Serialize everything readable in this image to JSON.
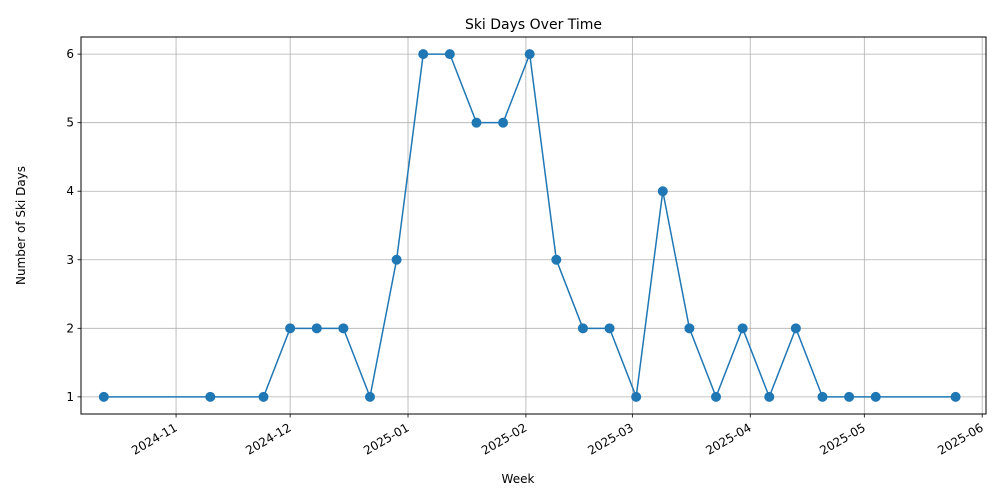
{
  "chart_data": {
    "type": "line",
    "title": "Ski Days Over Time",
    "xlabel": "Week",
    "ylabel": "Number of Ski Days",
    "x_tick_labels": [
      "2024-11",
      "2024-12",
      "2025-01",
      "2025-02",
      "2025-03",
      "2025-04",
      "2025-05",
      "2025-06"
    ],
    "y_tick_labels": [
      "1",
      "2",
      "3",
      "4",
      "5",
      "6"
    ],
    "xlim": [
      "2024-10-07",
      "2025-06-02"
    ],
    "ylim": [
      0.75,
      6.25
    ],
    "grid": true,
    "series": [
      {
        "color": "#1f77b4",
        "marker": "circle",
        "x": [
          "2024-10-13",
          "2024-11-10",
          "2024-11-24",
          "2024-12-01",
          "2024-12-08",
          "2024-12-15",
          "2024-12-22",
          "2024-12-29",
          "2025-01-05",
          "2025-01-12",
          "2025-01-19",
          "2025-01-26",
          "2025-02-02",
          "2025-02-09",
          "2025-02-16",
          "2025-02-23",
          "2025-03-02",
          "2025-03-09",
          "2025-03-16",
          "2025-03-23",
          "2025-03-30",
          "2025-04-06",
          "2025-04-13",
          "2025-04-20",
          "2025-04-27",
          "2025-05-04",
          "2025-05-25"
        ],
        "values": [
          1,
          1,
          1,
          2,
          2,
          2,
          1,
          3,
          6,
          6,
          5,
          5,
          6,
          3,
          2,
          2,
          1,
          4,
          2,
          1,
          2,
          1,
          2,
          1,
          1,
          1,
          1
        ]
      }
    ]
  }
}
